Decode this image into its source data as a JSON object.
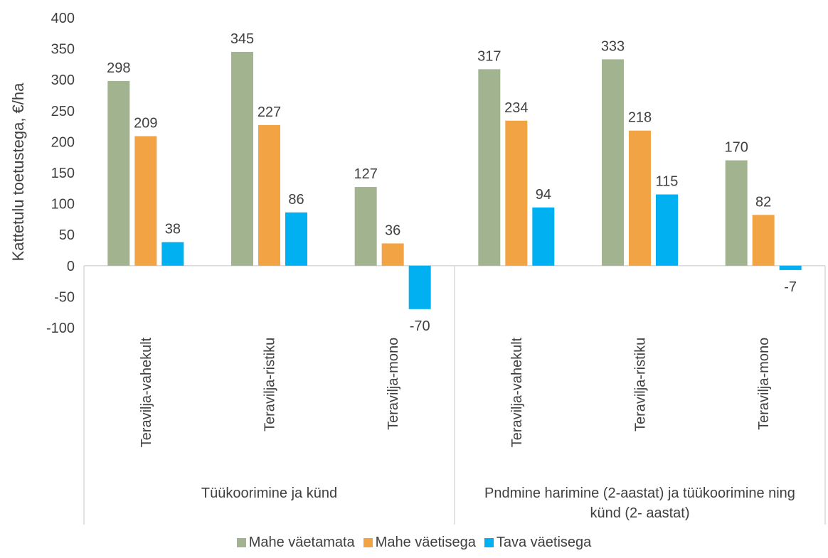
{
  "chart_data": {
    "type": "bar",
    "ylabel": "Kattetulu toetustega, €/ha",
    "ylim": [
      -100,
      400
    ],
    "yticks": [
      -100,
      -50,
      0,
      50,
      100,
      150,
      200,
      250,
      300,
      350,
      400
    ],
    "groups": [
      {
        "label": "Tüükoorimine ja künd",
        "categories": [
          "Teravilja-vahekult",
          "Teravilja-ristiku",
          "Teravilja-mono"
        ]
      },
      {
        "label": "Pndmine harimine (2-aastat) ja tüükoorimine ning künd (2- aastat)",
        "categories": [
          "Teravilja-vahekult",
          "Teravilja-ristiku",
          "Teravilja-mono"
        ]
      }
    ],
    "series": [
      {
        "name": "Mahe väetamata",
        "color": "#A1B38F",
        "values": [
          298,
          345,
          127,
          317,
          333,
          170
        ]
      },
      {
        "name": "Mahe väetisega",
        "color": "#F2A444",
        "values": [
          209,
          227,
          36,
          234,
          218,
          82
        ]
      },
      {
        "name": "Tava väetisega",
        "color": "#00B0F0",
        "values": [
          38,
          86,
          -70,
          94,
          115,
          -7
        ]
      }
    ],
    "data_labels": true,
    "legend_position": "bottom",
    "grid": false
  }
}
